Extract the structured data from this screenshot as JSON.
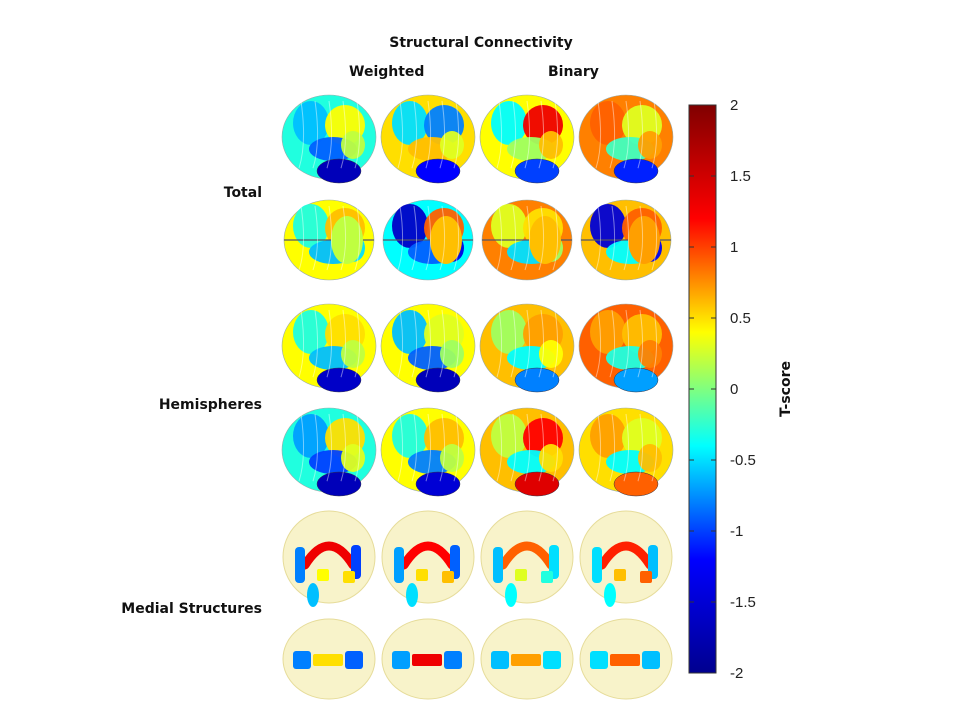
{
  "figure": {
    "title": "Structural Connectivity",
    "columns": [
      "Weighted",
      "Binary"
    ],
    "rows": [
      "Total",
      "Hemispheres",
      "Medial Structures"
    ]
  },
  "colorbar": {
    "label": "T-score",
    "min": -2,
    "max": 2,
    "ticks": [
      "2",
      "1.5",
      "1",
      "0.5",
      "0",
      "-0.5",
      "-1",
      "-1.5",
      "-2"
    ],
    "colormap": "jet",
    "colors": [
      "#00008f",
      "#0000ff",
      "#00ffff",
      "#ffff00",
      "#ff0000",
      "#800000"
    ]
  },
  "panels": {
    "count_rows": 6,
    "count_cols": 4,
    "row_types": [
      "brain-lateral",
      "brain-axial",
      "brain-medial",
      "brain-lateral",
      "medial-front",
      "medial-top"
    ]
  }
}
